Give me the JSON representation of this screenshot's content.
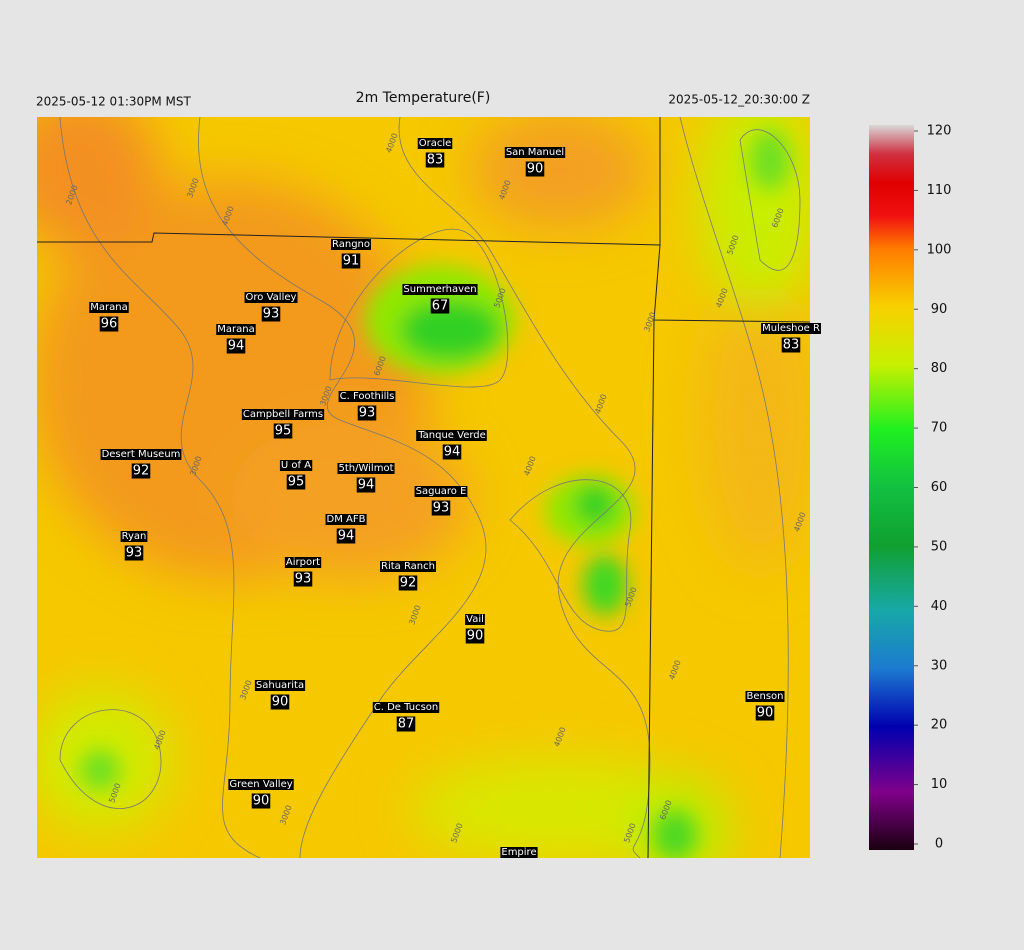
{
  "header": {
    "local_time": "2025-05-12 01:30PM MST",
    "title": "2m Temperature(F)",
    "utc_time": "2025-05-12_20:30:00 Z"
  },
  "stations": [
    {
      "name": "Oracle",
      "value": 83
    },
    {
      "name": "San Manuel",
      "value": 90
    },
    {
      "name": "Rangno",
      "value": 91
    },
    {
      "name": "Marana",
      "value": 96
    },
    {
      "name": "Oro Valley",
      "value": 93
    },
    {
      "name": "Summerhaven",
      "value": 67
    },
    {
      "name": "Marana",
      "value": 94
    },
    {
      "name": "Muleshoe R",
      "value": 83
    },
    {
      "name": "C. Foothills",
      "value": 93
    },
    {
      "name": "Campbell Farms",
      "value": 95
    },
    {
      "name": "Tanque Verde",
      "value": 94
    },
    {
      "name": "Desert Museum",
      "value": 92
    },
    {
      "name": "U of A",
      "value": 95
    },
    {
      "name": "5th/Wilmot",
      "value": 94
    },
    {
      "name": "Saguaro E",
      "value": 93
    },
    {
      "name": "DM AFB",
      "value": 94
    },
    {
      "name": "Ryan",
      "value": 93
    },
    {
      "name": "Airport",
      "value": 93
    },
    {
      "name": "Rita Ranch",
      "value": 92
    },
    {
      "name": "Vail",
      "value": 90
    },
    {
      "name": "Benson",
      "value": 90
    },
    {
      "name": "Sahuarita",
      "value": 90
    },
    {
      "name": "C. De Tucson",
      "value": 87
    },
    {
      "name": "Green Valley",
      "value": 90
    },
    {
      "name": "Empire",
      "value": null
    }
  ],
  "contour_labels": [
    2000,
    3000,
    4000,
    4000,
    4000,
    5000,
    6000,
    3000,
    4000,
    4000,
    3000,
    5000,
    3000,
    6000,
    5000,
    4000,
    3000,
    4000,
    4000,
    3000,
    4000,
    5000,
    4000,
    3000,
    5000,
    5000,
    6000
  ],
  "colorbar": {
    "lim": [
      0,
      120
    ],
    "ticks": [
      0,
      10,
      20,
      30,
      40,
      50,
      60,
      70,
      80,
      90,
      100,
      110,
      120
    ]
  }
}
